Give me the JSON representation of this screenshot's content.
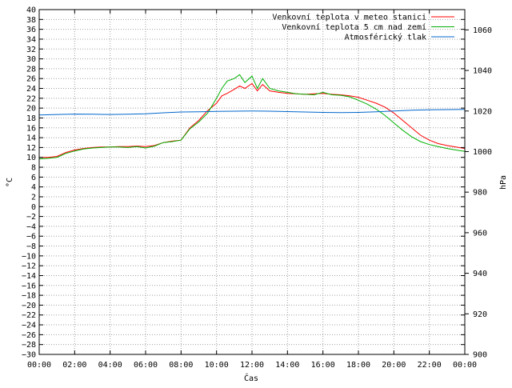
{
  "chart_data": {
    "type": "line",
    "xlabel": "Čas",
    "ylabel_left": "°C",
    "ylabel_right": "hPa",
    "x_ticks": [
      "00:00",
      "02:00",
      "04:00",
      "06:00",
      "08:00",
      "10:00",
      "12:00",
      "14:00",
      "16:00",
      "18:00",
      "20:00",
      "22:00",
      "00:00"
    ],
    "x_range_hours": [
      0,
      24
    ],
    "y_left_range": [
      -30,
      40
    ],
    "y_left_step": 2,
    "y_right_range": [
      900,
      1070
    ],
    "y_right_ticks": [
      900,
      920,
      940,
      960,
      980,
      1000,
      1020,
      1040,
      1060
    ],
    "grid": true,
    "legend_position": "top-right",
    "series": [
      {
        "name": "Venkovní teplota v meteo stanici",
        "color": "#ff0000",
        "axis": "left",
        "x": [
          0,
          0.5,
          1,
          1.5,
          2,
          2.5,
          3,
          3.5,
          4,
          4.5,
          5,
          5.5,
          6,
          6.5,
          7,
          7.5,
          8,
          8.5,
          9,
          9.5,
          10,
          10.3,
          10.6,
          11,
          11.3,
          11.6,
          12,
          12.3,
          12.6,
          13,
          13.5,
          14,
          14.5,
          15,
          15.5,
          16,
          16.5,
          17,
          17.5,
          18,
          18.5,
          19,
          19.5,
          20,
          20.5,
          21,
          21.5,
          22,
          22.5,
          23,
          23.5,
          24
        ],
        "values": [
          10,
          10,
          10.2,
          11,
          11.5,
          11.8,
          12,
          12.1,
          12.1,
          12.2,
          12.2,
          12.3,
          12.2,
          12.4,
          13,
          13.3,
          13.5,
          16,
          17.5,
          19.5,
          21,
          22.5,
          23,
          23.8,
          24.5,
          24,
          25,
          23.5,
          24.8,
          23.5,
          23.2,
          23,
          22.9,
          22.8,
          22.9,
          23,
          22.8,
          22.7,
          22.5,
          22.2,
          21.6,
          21,
          20.2,
          19,
          17.5,
          16,
          14.5,
          13.5,
          12.8,
          12.4,
          12.1,
          11.8
        ]
      },
      {
        "name": "Venkovní teplota 5 cm nad zemí",
        "color": "#00b000",
        "axis": "left",
        "x": [
          0,
          0.5,
          1,
          1.5,
          2,
          2.5,
          3,
          3.5,
          4,
          4.5,
          5,
          5.5,
          6,
          6.5,
          7,
          7.5,
          8,
          8.5,
          9,
          9.5,
          10,
          10.3,
          10.6,
          11,
          11.3,
          11.6,
          12,
          12.3,
          12.6,
          13,
          13.5,
          14,
          14.5,
          15,
          15.5,
          16,
          16.5,
          17,
          17.5,
          18,
          18.5,
          19,
          19.5,
          20,
          20.5,
          21,
          21.5,
          22,
          22.5,
          23,
          23.5,
          24
        ],
        "values": [
          9.7,
          9.8,
          10,
          10.8,
          11.3,
          11.7,
          11.9,
          12,
          12.1,
          12.1,
          12,
          12.2,
          11.9,
          12.3,
          13,
          13.2,
          13.5,
          15.8,
          17.2,
          19,
          22,
          24,
          25.5,
          26,
          26.8,
          25.2,
          26.5,
          24,
          26,
          24,
          23.5,
          23.2,
          22.9,
          22.8,
          22.7,
          23.2,
          22.7,
          22.6,
          22.3,
          21.6,
          20.8,
          19.8,
          18.5,
          17,
          15.5,
          14.2,
          13.2,
          12.6,
          12.2,
          11.8,
          11.5,
          11.2
        ]
      },
      {
        "name": "Atmosférický tlak",
        "color": "#0066cc",
        "axis": "right",
        "x": [
          0,
          1,
          2,
          3,
          4,
          5,
          6,
          7,
          8,
          9,
          10,
          11,
          12,
          13,
          14,
          15,
          16,
          17,
          18,
          19,
          20,
          21,
          22,
          23,
          24
        ],
        "values": [
          1018,
          1018.3,
          1018.5,
          1018.4,
          1018.3,
          1018.4,
          1018.6,
          1019.1,
          1019.5,
          1019.6,
          1019.8,
          1019.9,
          1020,
          1019.9,
          1019.7,
          1019.5,
          1019.3,
          1019.2,
          1019.3,
          1019.6,
          1020,
          1020.4,
          1020.6,
          1020.7,
          1020.8
        ]
      }
    ]
  }
}
